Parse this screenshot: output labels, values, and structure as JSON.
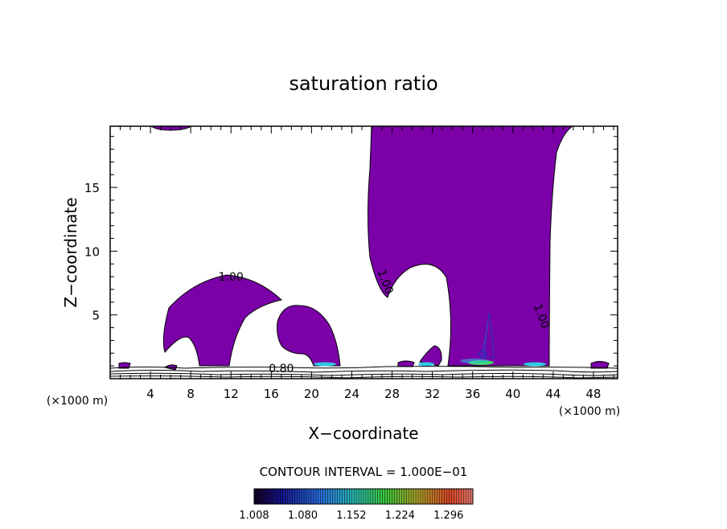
{
  "chart_data": {
    "type": "contour",
    "title": "saturation ratio",
    "xlabel": "X−coordinate",
    "ylabel": "Z−coordinate",
    "x_unit_left": "(×1000 m)",
    "x_unit_right": "(×1000 m)",
    "xlim": [
      0,
      50.4
    ],
    "ylim": [
      0,
      19.8
    ],
    "x_ticks": [
      4,
      8,
      12,
      16,
      20,
      24,
      28,
      32,
      36,
      40,
      44,
      48
    ],
    "y_ticks": [
      5,
      10,
      15
    ],
    "contour_labels": [
      {
        "text": "1.00",
        "x": 12.0,
        "y": 7.7
      },
      {
        "text": "1.00",
        "x": 27.0,
        "y": 7.5,
        "rotated": true
      },
      {
        "text": "1.00",
        "x": 42.5,
        "y": 4.8,
        "rotated": true
      },
      {
        "text": "0.80",
        "x": 17.0,
        "y": 0.5
      }
    ],
    "contour_interval_text": "CONTOUR INTERVAL = 1.000E−01",
    "colorbar": {
      "labels": [
        "1.008",
        "1.080",
        "1.152",
        "1.224",
        "1.296"
      ],
      "min": 1.008,
      "max": 1.332
    },
    "fill_color": "#7b00a8",
    "grid": false,
    "legend": "colorbar-bottom"
  }
}
